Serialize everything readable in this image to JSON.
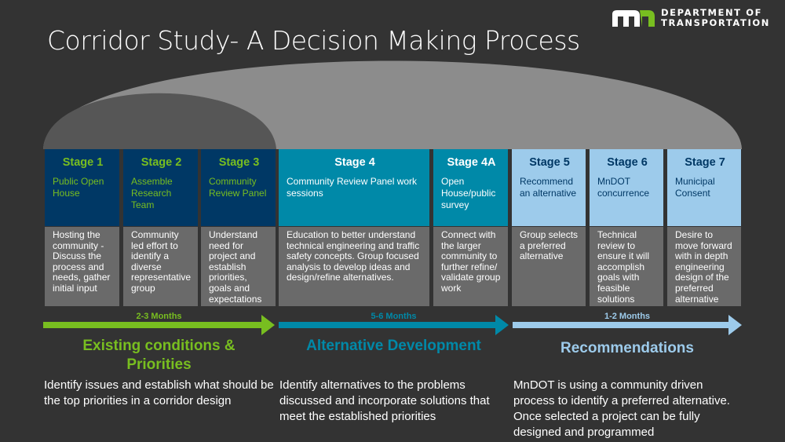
{
  "title": "Corridor Study- A Decision Making Process",
  "logo": {
    "mark": "mn",
    "line1": "DEPARTMENT OF",
    "line2": "TRANSPORTATION"
  },
  "colors": {
    "background": "#333333",
    "navy": "#003865",
    "green": "#78be20",
    "teal": "#0089a8",
    "light_blue": "#9dcbeb",
    "desc_gray": "#6a6a6a"
  },
  "stages": [
    {
      "label": "Stage 1",
      "subtitle": "Public Open House",
      "description": "Hosting the community - Discuss the process and needs, gather initial input"
    },
    {
      "label": "Stage 2",
      "subtitle": "Assemble Research Team",
      "description": "Community led effort to identify a diverse representative group"
    },
    {
      "label": "Stage 3",
      "subtitle": "Community Review Panel",
      "description": "Understand need for project and establish priorities, goals and expectations"
    },
    {
      "label": "Stage 4",
      "subtitle": "Community Review Panel work sessions",
      "description": "Education to better understand technical engineering and traffic safety concepts. Group focused analysis to develop ideas and design/refine alternatives."
    },
    {
      "label": "Stage 4A",
      "subtitle": "Open House/public survey",
      "description": "Connect with the larger community to further refine/ validate group work"
    },
    {
      "label": "Stage 5",
      "subtitle": "Recommend an alternative",
      "description": "Group selects a preferred alternative"
    },
    {
      "label": "Stage 6",
      "subtitle": "MnDOT concurrence",
      "description": "Technical review to ensure it will accomplish goals with feasible solutions"
    },
    {
      "label": "Stage 7",
      "subtitle": "Municipal Consent",
      "description": "Desire to move forward with in depth engineering design of the preferred alternative"
    }
  ],
  "phases": [
    {
      "duration": "2-3 Months",
      "title": "Existing conditions & Priorities",
      "description": "Identify issues and establish what should be the top priorities in a corridor design"
    },
    {
      "duration": "5-6 Months",
      "title": "Alternative Development",
      "description": "Identify alternatives to the problems discussed and incorporate solutions that meet the established priorities"
    },
    {
      "duration": "1-2 Months",
      "title": "Recommendations",
      "description": "MnDOT is using a community driven process to identify a preferred alternative. Once selected a project can be fully designed and programmed"
    }
  ]
}
